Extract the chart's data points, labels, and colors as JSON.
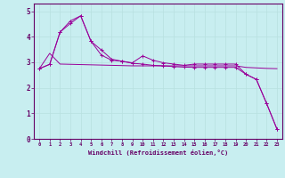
{
  "bg_color": "#c8eef0",
  "line_color": "#990099",
  "grid_color": "#b8e0e0",
  "xlabel": "Windchill (Refroidissement éolien,°C)",
  "xlabel_color": "#660066",
  "tick_color": "#660066",
  "xlim": [
    -0.5,
    23.5
  ],
  "ylim": [
    0,
    5.3
  ],
  "yticks": [
    0,
    1,
    2,
    3,
    4,
    5
  ],
  "xticks": [
    0,
    1,
    2,
    3,
    4,
    5,
    6,
    7,
    8,
    9,
    10,
    11,
    12,
    13,
    14,
    15,
    16,
    17,
    18,
    19,
    20,
    21,
    22,
    23
  ],
  "series1_x": [
    0,
    1,
    2,
    3,
    4,
    5,
    6,
    7,
    8,
    9,
    10,
    11,
    12,
    13,
    14,
    15,
    16,
    17,
    18,
    19,
    20,
    21,
    22,
    23
  ],
  "series1_y": [
    2.75,
    3.35,
    2.93,
    2.92,
    2.91,
    2.9,
    2.89,
    2.88,
    2.87,
    2.86,
    2.86,
    2.86,
    2.86,
    2.86,
    2.86,
    2.86,
    2.86,
    2.86,
    2.86,
    2.86,
    2.8,
    2.78,
    2.76,
    2.75
  ],
  "series2_x": [
    0,
    1,
    2,
    3,
    4,
    5,
    6,
    7,
    8,
    9,
    10,
    11,
    12,
    13,
    14,
    15,
    16,
    17,
    18,
    19,
    20,
    21,
    22,
    23
  ],
  "series2_y": [
    2.75,
    2.92,
    4.18,
    4.62,
    4.82,
    3.82,
    3.48,
    3.12,
    3.04,
    2.98,
    3.25,
    3.08,
    2.98,
    2.93,
    2.88,
    2.93,
    2.93,
    2.93,
    2.93,
    2.93,
    2.53,
    2.33,
    1.38,
    0.38
  ],
  "series3_x": [
    0,
    1,
    2,
    3,
    4,
    5,
    6,
    7,
    8,
    9,
    10,
    11,
    12,
    13,
    14,
    15,
    16,
    17,
    18,
    19,
    20,
    21,
    22,
    23
  ],
  "series3_y": [
    2.75,
    2.92,
    4.18,
    4.52,
    4.82,
    3.82,
    3.28,
    3.08,
    3.04,
    2.96,
    2.93,
    2.88,
    2.86,
    2.83,
    2.81,
    2.8,
    2.8,
    2.8,
    2.8,
    2.8,
    2.53,
    2.33,
    1.38,
    0.38
  ]
}
